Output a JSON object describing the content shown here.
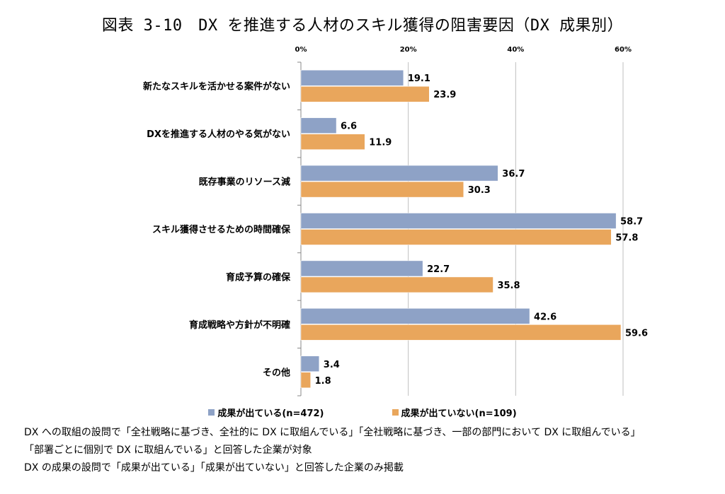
{
  "title": "図表 3-10　DX を推進する人材のスキル獲得の阻害要因（DX 成果別）",
  "colors": {
    "series1": "#8EA2C6",
    "series2": "#E9A65C",
    "grid": "#BFBFBF",
    "axis": "#888888"
  },
  "chart_data": {
    "type": "bar",
    "orientation": "horizontal",
    "unit": "%",
    "xlim": [
      0,
      60
    ],
    "ticks": [
      "0%",
      "20%",
      "40%",
      "60%"
    ],
    "tick_values": [
      0,
      20,
      40,
      60
    ],
    "grid": true,
    "legend_position": "bottom",
    "categories": [
      "新たなスキルを活かせる案件がない",
      "DXを推進する人材のやる気がない",
      "既存事業のリソース減",
      "スキル獲得させるための時間確保",
      "育成予算の確保",
      "育成戦略や方針が不明確",
      "その他"
    ],
    "series": [
      {
        "name": "成果が出ている(n=472)",
        "values": [
          19.1,
          6.6,
          36.7,
          58.7,
          22.7,
          42.6,
          3.4
        ]
      },
      {
        "name": "成果が出ていない(n=109)",
        "values": [
          23.9,
          11.9,
          30.3,
          57.8,
          35.8,
          59.6,
          1.8
        ]
      }
    ]
  },
  "notes": [
    "DX への取組の設問で「全社戦略に基づき、全社的に DX に取組んでいる」「全社戦略に基づき、一部の部門において DX に取組んでいる」",
    "「部署ごとに個別で DX に取組んでいる」と回答した企業が対象",
    "DX の成果の設問で「成果が出ている」「成果が出ていない」と回答した企業のみ掲載"
  ]
}
